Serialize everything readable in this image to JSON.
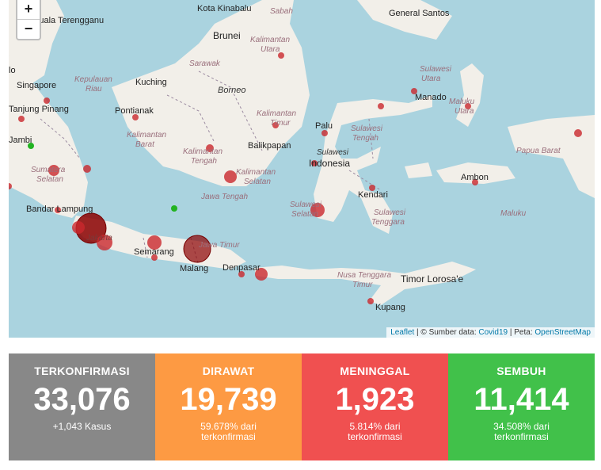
{
  "map": {
    "zoom": {
      "in_label": "+",
      "out_label": "−"
    },
    "attribution": {
      "leaflet": "Leaflet",
      "sep1": " | © Sumber data: ",
      "source": "Covid19",
      "sep2": " | Peta: ",
      "tiles": "OpenStreetMap"
    },
    "labels": {
      "kota_kinabalu": "Kota Kinabalu",
      "sabah": "Sabah",
      "general_santos": "General Santos",
      "kuala_terengganu": "Kuala Terengganu",
      "brunei": "Brunei",
      "sarawak": "Sarawak",
      "kalimantan_utara": "Kalimantan Utara",
      "singapore": "Singapore",
      "kepulauan_riau": "Kepulauan Riau",
      "kuching": "Kuching",
      "borneo": "Borneo",
      "tanjung_pinang": "Tanjung Pinang",
      "pontianak": "Pontianak",
      "kalimantan_timur": "Kalimantan Timur",
      "manado": "Manado",
      "sulawesi_utara": "Sulawesi Utara",
      "maluku_utara": "Maluku Utara",
      "kalimantan_barat": "Kalimantan Barat",
      "palu": "Palu",
      "sulawesi_tengah": "Sulawesi Tengah",
      "jambi": "Jambi",
      "kalimantan_tengah": "Kalimantan Tengah",
      "balikpapan": "Balikpapan",
      "sulawesi": "Sulawesi",
      "papua_barat": "Papua Barat",
      "indonesia": "Indonesia",
      "sumatera_selatan": "Sumatera Selatan",
      "kalimantan_selatan": "Kalimantan Selatan",
      "kendari": "Kendari",
      "ambon": "Ambon",
      "bandar_lampung": "Bandar Lampung",
      "jawa_tengah": "Jawa Tengah",
      "sulawesi_selatan": "Sulawesi Selatan",
      "sulawesi_tenggara": "Sulawesi Tenggara",
      "maluku": "Maluku",
      "jakarta": "Jakarta",
      "semarang": "Semarang",
      "jawa_timur": "Jawa Timur",
      "malang": "Malang",
      "denpasar": "Denpasar",
      "nusa_tenggara_timur": "Nusa Tenggara Timur",
      "timor_loro_sae": "Timor Lorosa'e",
      "kupang": "Kupang"
    },
    "colors": {
      "water": "#aad3df",
      "land": "#f2efe9",
      "border": "#9b8aa0",
      "case": "#c9282d",
      "case_major": "#8b0000",
      "recovered": "#22b322"
    }
  },
  "stats": {
    "confirmed": {
      "title": "TERKONFIRMASI",
      "value": "33,076",
      "sub": "+1,043 Kasus",
      "color": "#888888"
    },
    "treated": {
      "title": "DIRAWAT",
      "value": "19,739",
      "sub1": "59.678% dari",
      "sub2": "terkonfirmasi",
      "color": "#fd9a43"
    },
    "deaths": {
      "title": "MENINGGAL",
      "value": "1,923",
      "sub1": "5.814% dari",
      "sub2": "terkonfirmasi",
      "color": "#f05050"
    },
    "recovered": {
      "title": "SEMBUH",
      "value": "11,414",
      "sub1": "34.508% dari",
      "sub2": "terkonfirmasi",
      "color": "#41c14a"
    }
  }
}
